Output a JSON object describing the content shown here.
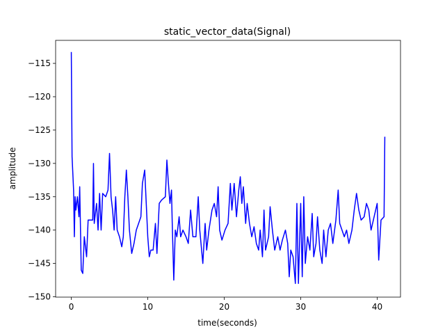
{
  "chart_data": {
    "type": "line",
    "title": "static_vector_data(Signal)",
    "xlabel": "time(seconds)",
    "ylabel": "amplitude",
    "color": "#0000ff",
    "x": [
      0,
      0.1,
      0.3,
      0.4,
      0.5,
      0.6,
      0.8,
      1.0,
      1.1,
      1.3,
      1.5,
      1.7,
      2.0,
      2.2,
      2.8,
      2.9,
      3.0,
      3.3,
      3.5,
      3.7,
      3.9,
      4.1,
      4.5,
      4.8,
      5.0,
      5.2,
      5.4,
      5.6,
      5.8,
      6.0,
      6.3,
      6.6,
      6.8,
      7.0,
      7.2,
      7.4,
      7.6,
      7.9,
      8.2,
      8.5,
      8.8,
      9.1,
      9.3,
      9.6,
      9.8,
      10.0,
      10.2,
      10.4,
      10.7,
      11.0,
      11.2,
      11.5,
      11.8,
      12.3,
      12.5,
      12.7,
      12.9,
      13.1,
      13.2,
      13.4,
      13.6,
      13.8,
      14.1,
      14.3,
      14.6,
      15.0,
      15.3,
      15.6,
      15.9,
      16.3,
      16.6,
      16.8,
      17.2,
      17.5,
      17.7,
      18.0,
      18.4,
      18.7,
      19.0,
      19.2,
      19.4,
      19.7,
      20.1,
      20.5,
      20.8,
      21.0,
      21.3,
      21.6,
      21.9,
      22.1,
      22.3,
      22.5,
      22.8,
      23.0,
      23.3,
      23.6,
      23.9,
      24.2,
      24.5,
      24.7,
      25.0,
      25.2,
      25.4,
      25.8,
      26.0,
      26.3,
      26.6,
      27.0,
      27.3,
      27.6,
      28.0,
      28.3,
      28.5,
      28.7,
      29.0,
      29.3,
      29.5,
      29.7,
      30.0,
      30.2,
      30.4,
      30.6,
      30.9,
      31.2,
      31.5,
      31.7,
      32.0,
      32.2,
      32.5,
      32.8,
      33.0,
      33.3,
      33.6,
      33.9,
      34.2,
      34.6,
      34.9,
      35.1,
      35.4,
      35.7,
      36.0,
      36.3,
      36.5,
      36.7,
      37.0,
      37.3,
      37.6,
      37.9,
      38.3,
      38.6,
      38.9,
      39.2,
      39.6,
      40.0,
      40.2,
      40.5,
      40.9,
      41.0
    ],
    "values": [
      -113.3,
      -129,
      -134,
      -141,
      -135,
      -137,
      -135,
      -138,
      -133.5,
      -146,
      -146.5,
      -141,
      -144,
      -138.5,
      -138.5,
      -130,
      -139,
      -136,
      -140,
      -134.5,
      -140,
      -134.5,
      -135,
      -134,
      -128.5,
      -135,
      -137,
      -140,
      -135,
      -140,
      -141,
      -142.5,
      -141,
      -135,
      -131,
      -135,
      -140,
      -143.5,
      -142,
      -140,
      -139,
      -138,
      -133,
      -131,
      -136,
      -141,
      -144,
      -143,
      -143,
      -139,
      -143.5,
      -136,
      -135.5,
      -135,
      -129.5,
      -133,
      -136,
      -134,
      -139,
      -147.5,
      -140,
      -141,
      -138,
      -141,
      -140,
      -141,
      -142,
      -137,
      -141,
      -141,
      -135,
      -140,
      -145,
      -139,
      -143,
      -140,
      -137,
      -136,
      -138,
      -133.5,
      -140,
      -141.5,
      -140,
      -139,
      -133,
      -137,
      -133,
      -138,
      -134,
      -132,
      -136,
      -133.5,
      -139,
      -136,
      -139,
      -141,
      -139.5,
      -142,
      -143,
      -140,
      -144,
      -137,
      -143,
      -141,
      -136.5,
      -140,
      -143,
      -141,
      -143,
      -141.5,
      -140,
      -142,
      -147,
      -143,
      -144,
      -148,
      -136,
      -148,
      -136,
      -147,
      -135,
      -145,
      -141,
      -143,
      -137.5,
      -144,
      -142,
      -138,
      -143,
      -145,
      -140,
      -144,
      -140,
      -139,
      -142,
      -138.5,
      -134,
      -139,
      -140,
      -141,
      -140,
      -142,
      -141,
      -140,
      -137,
      -134.5,
      -137,
      -138.5,
      -138,
      -136,
      -137,
      -140,
      -138,
      -136,
      -144.5,
      -138.5,
      -138,
      -126
    ],
    "xlim": [
      -2.05,
      43.05
    ],
    "ylim": [
      -150.05,
      -111.55
    ],
    "xticks": [
      0,
      10,
      20,
      30,
      40
    ],
    "yticks": [
      {
        "value": -150,
        "label": "−150"
      },
      {
        "value": -145,
        "label": "−145"
      },
      {
        "value": -140,
        "label": "−140"
      },
      {
        "value": -135,
        "label": "−135"
      },
      {
        "value": -130,
        "label": "−130"
      },
      {
        "value": -125,
        "label": "−125"
      },
      {
        "value": -120,
        "label": "−120"
      },
      {
        "value": -115,
        "label": "−115"
      }
    ]
  }
}
